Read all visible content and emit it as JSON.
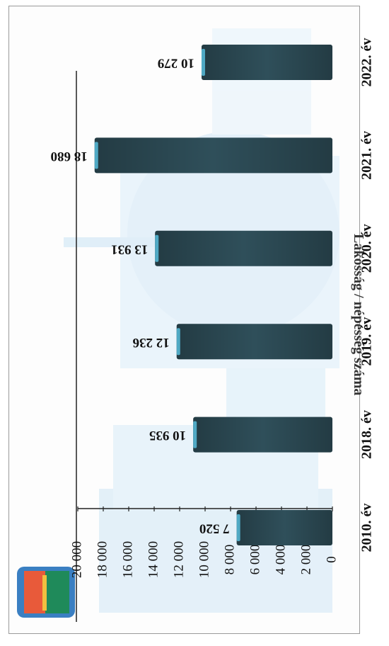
{
  "page": {
    "title": "Lakosság / népesség száma",
    "background": "#ffffff"
  },
  "chart_data": {
    "type": "bar",
    "orientation": "horizontal (page rotated 180°)",
    "categories": [
      "2010. év",
      "2018. év",
      "2019. év",
      "2020. év",
      "2021. év",
      "2022. év"
    ],
    "values": [
      7520,
      10935,
      12236,
      13931,
      18680,
      10279
    ],
    "data_labels": [
      "7 520",
      "10 935",
      "12 236",
      "13 931",
      "18 680",
      "10 279"
    ],
    "xlim": [
      0,
      20000
    ],
    "ticks": [
      0,
      2000,
      4000,
      6000,
      8000,
      10000,
      12000,
      14000,
      16000,
      18000,
      20000
    ],
    "tick_labels": [
      "0",
      "2 000",
      "4 000",
      "6 000",
      "8 000",
      "10 000",
      "12 000",
      "14 000",
      "16 000",
      "18 000",
      "20 000"
    ],
    "bar_color": "#2f4f5a",
    "bar_highlight": "#4fa9c4",
    "grid": false,
    "legend": "none",
    "background_image": "faded city skyline"
  }
}
